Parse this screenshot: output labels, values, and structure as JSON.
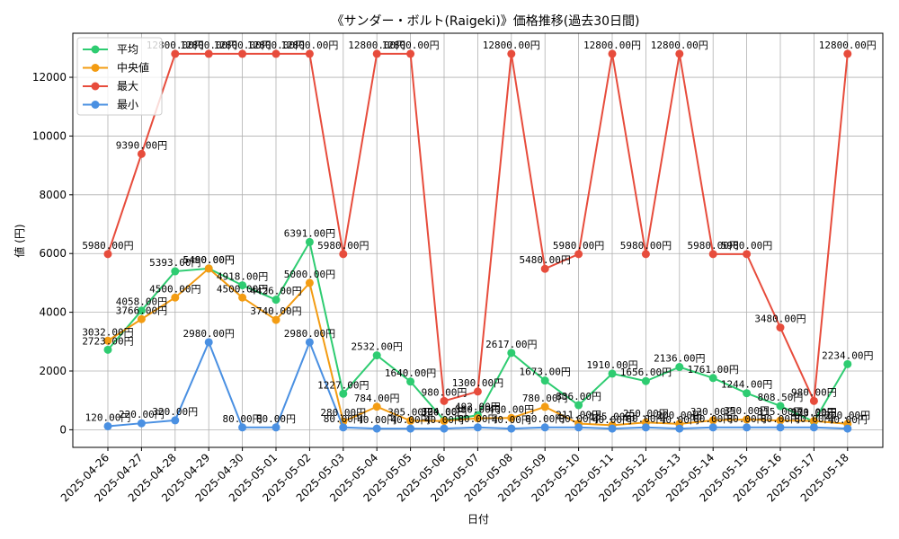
{
  "chart_data": {
    "type": "line",
    "title": "《サンダー・ボルト(Raigeki)》価格推移(過去30日間)",
    "xlabel": "日付",
    "ylabel": "値 (円)",
    "ylim": [
      -600,
      13500
    ],
    "yticks": [
      0,
      2000,
      4000,
      6000,
      8000,
      10000,
      12000
    ],
    "grid": true,
    "legend_position": "top-left",
    "value_suffix": "円",
    "categories": [
      "2025-04-26",
      "2025-04-27",
      "2025-04-28",
      "2025-04-29",
      "2025-04-30",
      "2025-05-01",
      "2025-05-02",
      "2025-05-03",
      "2025-05-04",
      "2025-05-05",
      "2025-05-06",
      "2025-05-07",
      "2025-05-08",
      "2025-05-09",
      "2025-05-10",
      "2025-05-11",
      "2025-05-12",
      "2025-05-13",
      "2025-05-14",
      "2025-05-15",
      "2025-05-16",
      "2025-05-17",
      "2025-05-18"
    ],
    "series": [
      {
        "name": "平均",
        "color": "#2ecc71",
        "values": [
          2723,
          4058,
          5393,
          5490,
          4918,
          4426,
          6391,
          1227,
          2532,
          1640,
          324,
          492,
          2617,
          1673,
          836,
          1910,
          1656,
          2136,
          1761,
          1244,
          808.5,
          273,
          2234
        ]
      },
      {
        "name": "中央値",
        "color": "#f39c12",
        "values": [
          3032,
          3766,
          4500,
          5490,
          4500,
          3740,
          5000,
          280,
          784,
          305,
          300,
          390,
          400,
          780,
          211,
          155,
          250,
          200,
          320,
          350,
          315,
          300,
          200
        ]
      },
      {
        "name": "最大",
        "color": "#e74c3c",
        "values": [
          5980,
          9390,
          12800,
          12800,
          12800,
          12800,
          12800,
          5980,
          12800,
          12800,
          980,
          1300,
          12800,
          5480,
          5980,
          12800,
          5980,
          12800,
          5980,
          5980,
          3480,
          980,
          12800
        ]
      },
      {
        "name": "最小",
        "color": "#4a90e2",
        "values": [
          120,
          220,
          320,
          2980,
          80,
          80,
          2980,
          80,
          40,
          40,
          40,
          80,
          40,
          80,
          80,
          40,
          80,
          40,
          80,
          80,
          80,
          80,
          40
        ]
      }
    ]
  }
}
